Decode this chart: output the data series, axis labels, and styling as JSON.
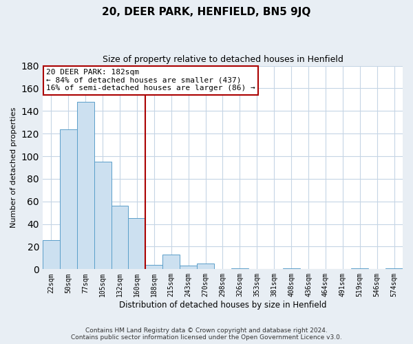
{
  "title": "20, DEER PARK, HENFIELD, BN5 9JQ",
  "subtitle": "Size of property relative to detached houses in Henfield",
  "xlabel": "Distribution of detached houses by size in Henfield",
  "ylabel": "Number of detached properties",
  "bar_labels": [
    "22sqm",
    "50sqm",
    "77sqm",
    "105sqm",
    "132sqm",
    "160sqm",
    "188sqm",
    "215sqm",
    "243sqm",
    "270sqm",
    "298sqm",
    "326sqm",
    "353sqm",
    "381sqm",
    "408sqm",
    "436sqm",
    "464sqm",
    "491sqm",
    "519sqm",
    "546sqm",
    "574sqm"
  ],
  "bar_values": [
    26,
    124,
    148,
    95,
    56,
    45,
    4,
    13,
    3,
    5,
    0,
    1,
    0,
    0,
    1,
    0,
    0,
    0,
    1,
    0,
    1
  ],
  "bar_color": "#cce0f0",
  "bar_edge_color": "#5a9ec9",
  "property_line_label": "20 DEER PARK: 182sqm",
  "annotation_smaller": "← 84% of detached houses are smaller (437)",
  "annotation_larger": "16% of semi-detached houses are larger (86) →",
  "annotation_box_color": "#ffffff",
  "annotation_box_edge": "#aa0000",
  "vline_color": "#aa0000",
  "vline_position": 6,
  "ylim": [
    0,
    180
  ],
  "yticks": [
    0,
    20,
    40,
    60,
    80,
    100,
    120,
    140,
    160,
    180
  ],
  "footnote1": "Contains HM Land Registry data © Crown copyright and database right 2024.",
  "footnote2": "Contains public sector information licensed under the Open Government Licence v3.0.",
  "bg_color": "#e8eef4",
  "plot_bg_color": "#ffffff",
  "grid_color": "#c5d5e5"
}
